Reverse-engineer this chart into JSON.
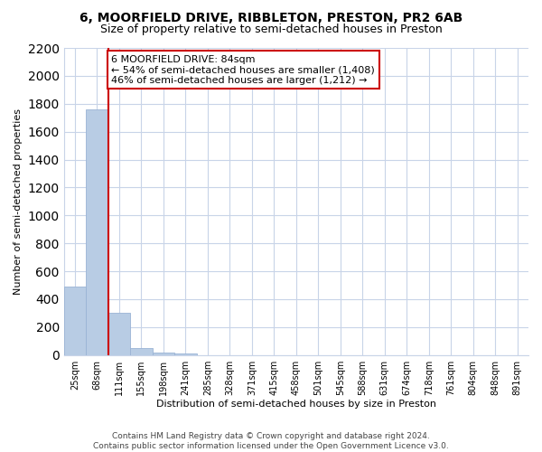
{
  "title": "6, MOORFIELD DRIVE, RIBBLETON, PRESTON, PR2 6AB",
  "subtitle": "Size of property relative to semi-detached houses in Preston",
  "xlabel": "Distribution of semi-detached houses by size in Preston",
  "ylabel": "Number of semi-detached properties",
  "bin_labels": [
    "25sqm",
    "68sqm",
    "111sqm",
    "155sqm",
    "198sqm",
    "241sqm",
    "285sqm",
    "328sqm",
    "371sqm",
    "415sqm",
    "458sqm",
    "501sqm",
    "545sqm",
    "588sqm",
    "631sqm",
    "674sqm",
    "718sqm",
    "761sqm",
    "804sqm",
    "848sqm",
    "891sqm"
  ],
  "bar_values": [
    490,
    1760,
    305,
    50,
    20,
    10,
    0,
    0,
    0,
    0,
    0,
    0,
    0,
    0,
    0,
    0,
    0,
    0,
    0,
    0,
    0
  ],
  "bar_color": "#b8cce4",
  "bar_edgecolor": "#9ab3d5",
  "property_line_label": "6 MOORFIELD DRIVE: 84sqm",
  "annotation_line1": "← 54% of semi-detached houses are smaller (1,408)",
  "annotation_line2": "46% of semi-detached houses are larger (1,212) →",
  "property_line_color": "#cc0000",
  "ylim": [
    0,
    2200
  ],
  "yticks": [
    0,
    200,
    400,
    600,
    800,
    1000,
    1200,
    1400,
    1600,
    1800,
    2000,
    2200
  ],
  "footer_line1": "Contains HM Land Registry data © Crown copyright and database right 2024.",
  "footer_line2": "Contains public sector information licensed under the Open Government Licence v3.0.",
  "background_color": "#ffffff",
  "grid_color": "#c8d4e8",
  "annotation_box_color": "#ffffff",
  "annotation_box_edgecolor": "#cc0000",
  "title_fontsize": 10,
  "subtitle_fontsize": 9,
  "axis_label_fontsize": 8,
  "tick_fontsize": 7,
  "annotation_fontsize": 8,
  "footer_fontsize": 6.5
}
